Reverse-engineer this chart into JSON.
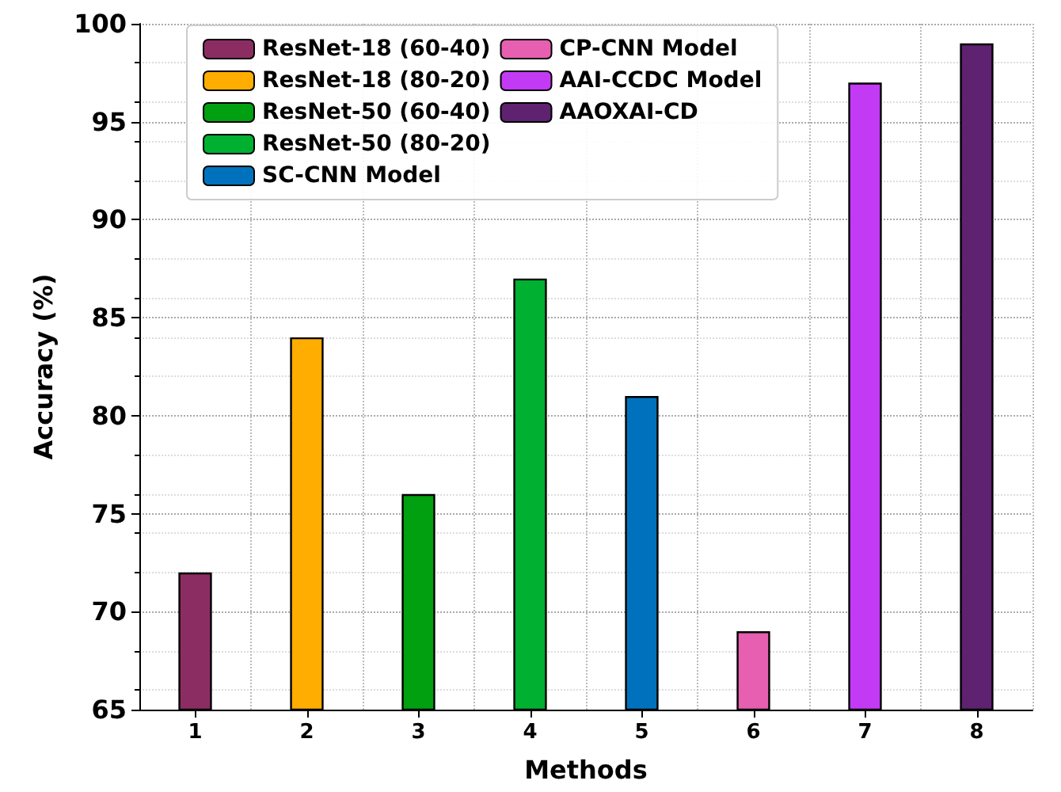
{
  "chart_data": {
    "type": "bar",
    "xlabel": "Methods",
    "ylabel": "Accuracy (%)",
    "categories": [
      "1",
      "2",
      "3",
      "4",
      "5",
      "6",
      "7",
      "8"
    ],
    "series": [
      {
        "name": "ResNet-18 (60-40)",
        "color": "#8b2d62",
        "values": [
          72,
          null,
          null,
          null,
          null,
          null,
          null,
          null
        ]
      },
      {
        "name": "ResNet-18 (80-20)",
        "color": "#ffad00",
        "values": [
          null,
          84,
          null,
          null,
          null,
          null,
          null,
          null
        ]
      },
      {
        "name": "ResNet-50 (60-40)",
        "color": "#00a010",
        "values": [
          null,
          null,
          76,
          null,
          null,
          null,
          null,
          null
        ]
      },
      {
        "name": "ResNet-50 (80-20)",
        "color": "#00b030",
        "values": [
          null,
          null,
          null,
          87,
          null,
          null,
          null,
          null
        ]
      },
      {
        "name": "SC-CNN Model",
        "color": "#0072bd",
        "values": [
          null,
          null,
          null,
          null,
          81,
          null,
          null,
          null
        ]
      },
      {
        "name": "CP-CNN Model",
        "color": "#e65fb0",
        "values": [
          null,
          null,
          null,
          null,
          null,
          69,
          null,
          null
        ]
      },
      {
        "name": "AAI-CCDC Model",
        "color": "#c33af5",
        "values": [
          null,
          null,
          null,
          null,
          null,
          null,
          97,
          null
        ]
      },
      {
        "name": "AAOXAI-CD",
        "color": "#5e2270",
        "values": [
          null,
          null,
          null,
          null,
          null,
          null,
          null,
          99
        ]
      }
    ],
    "ylim": [
      65,
      100
    ],
    "yticks": [
      65,
      70,
      75,
      80,
      85,
      90,
      95,
      100
    ],
    "grid": true,
    "legend": "top left"
  }
}
